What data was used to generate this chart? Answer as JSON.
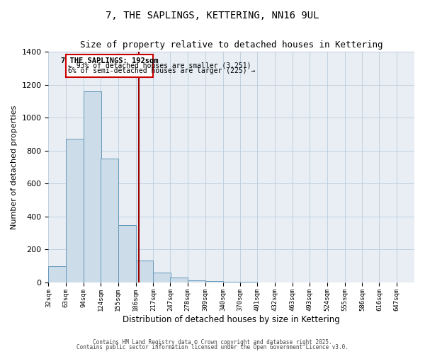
{
  "title": "7, THE SAPLINGS, KETTERING, NN16 9UL",
  "subtitle": "Size of property relative to detached houses in Kettering",
  "xlabel": "Distribution of detached houses by size in Kettering",
  "ylabel": "Number of detached properties",
  "bin_labels": [
    "32sqm",
    "63sqm",
    "94sqm",
    "124sqm",
    "155sqm",
    "186sqm",
    "217sqm",
    "247sqm",
    "278sqm",
    "309sqm",
    "340sqm",
    "370sqm",
    "401sqm",
    "432sqm",
    "463sqm",
    "493sqm",
    "524sqm",
    "555sqm",
    "586sqm",
    "616sqm",
    "647sqm"
  ],
  "bin_edges": [
    32,
    63,
    94,
    124,
    155,
    186,
    217,
    247,
    278,
    309,
    340,
    370,
    401,
    432,
    463,
    493,
    524,
    555,
    586,
    616,
    647
  ],
  "bar_heights": [
    100,
    870,
    1160,
    750,
    350,
    135,
    60,
    30,
    15,
    10,
    5,
    5,
    0,
    0,
    0,
    0,
    0,
    0,
    0,
    0
  ],
  "bar_color": "#ccdce8",
  "bar_edge_color": "#6699bb",
  "property_size": 192,
  "red_line_color": "#990000",
  "ylim": [
    0,
    1400
  ],
  "yticks": [
    0,
    200,
    400,
    600,
    800,
    1000,
    1200,
    1400
  ],
  "annotation_text_line1": "7 THE SAPLINGS: 192sqm",
  "annotation_text_line2": "← 93% of detached houses are smaller (3,251)",
  "annotation_text_line3": "6% of semi-detached houses are larger (225) →",
  "annotation_box_color": "#cc0000",
  "footer_line1": "Contains HM Land Registry data © Crown copyright and database right 2025.",
  "footer_line2": "Contains public sector information licensed under the Open Government Licence v3.0.",
  "background_color": "#ffffff",
  "plot_bg_color": "#e8eef4",
  "grid_color": "#bbccdd"
}
